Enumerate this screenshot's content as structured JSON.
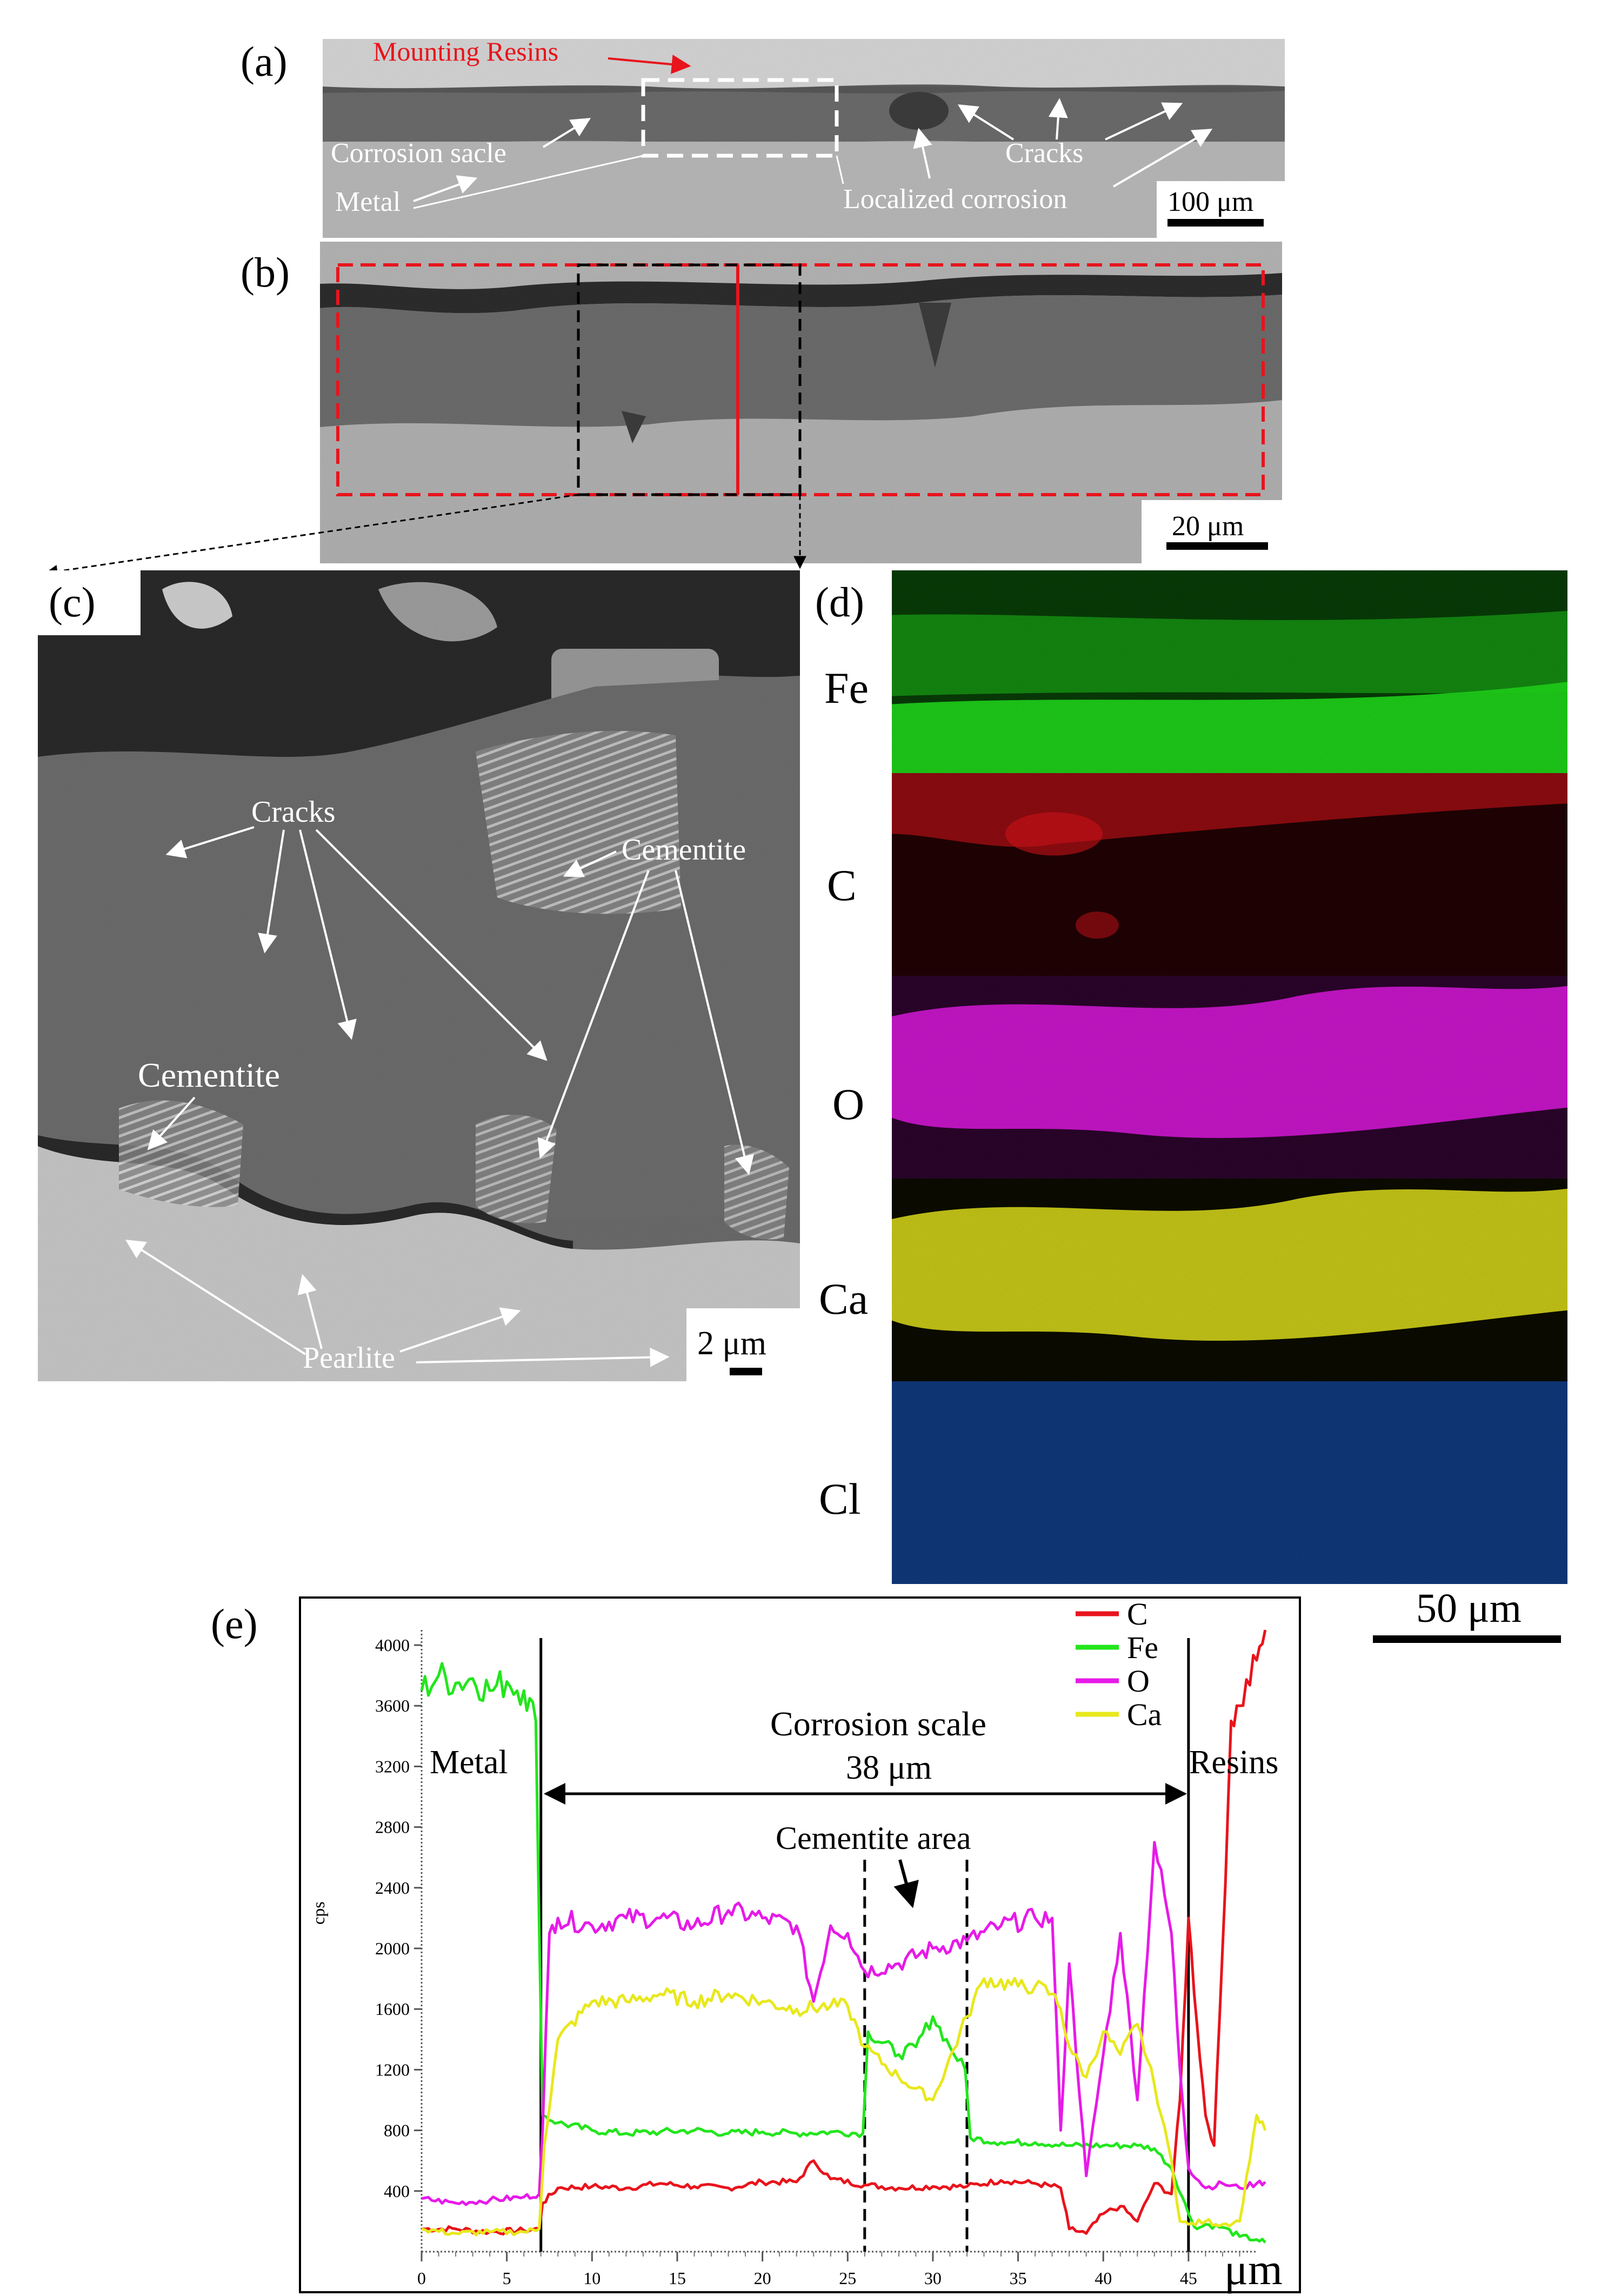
{
  "panels": {
    "a": {
      "label": "(a)",
      "annotations": [
        "Mounting Resins",
        "Corrosion sacle",
        "Metal",
        "Cracks",
        "Localized corrosion"
      ],
      "scale": "100 μm"
    },
    "b": {
      "label": "(b)",
      "scale": "20 μm"
    },
    "c": {
      "label": "(c)",
      "annotations": [
        "Cracks",
        "Cementite",
        "Cementite",
        "Pearlite"
      ],
      "scale": "2 μm"
    },
    "d": {
      "label": "(d)",
      "maps": [
        {
          "element": "Fe",
          "color": "#22e61c"
        },
        {
          "element": "C",
          "color": "#e8141c"
        },
        {
          "element": "O",
          "color": "#e61ae8"
        },
        {
          "element": "Ca",
          "color": "#e8e81c"
        },
        {
          "element": "Cl",
          "color": "#1c5cc8"
        }
      ],
      "scale": "50 μm"
    },
    "e": {
      "label": "(e)",
      "annotations": {
        "metal": "Metal",
        "scale_title": "Corrosion scale",
        "scale_len": "38 μm",
        "cementite": "Cementite area",
        "resins": "Resins"
      }
    }
  },
  "chart_data": {
    "type": "line",
    "ylabel": "cps",
    "xlabel": "μm",
    "xlim": [
      0,
      49
    ],
    "ylim": [
      0,
      4100
    ],
    "xticks": [
      0,
      5,
      10,
      15,
      20,
      25,
      30,
      35,
      40,
      45
    ],
    "yticks": [
      400,
      800,
      1200,
      1600,
      2000,
      2400,
      2800,
      3200,
      3600,
      4000
    ],
    "legend_position": "top-right",
    "markers": [
      7,
      26,
      32,
      45
    ],
    "series": [
      {
        "name": "C",
        "color": "#e8141c",
        "x": [
          0,
          2,
          4,
          6,
          6.9,
          7.1,
          8,
          10,
          12,
          14,
          16,
          18,
          20,
          22,
          23,
          24,
          26,
          28,
          30,
          32,
          34,
          36,
          37.5,
          38,
          39,
          40,
          41,
          42,
          43,
          44,
          44.5,
          45,
          45.5,
          46,
          46.5,
          47,
          47.5,
          48,
          49,
          49.5
        ],
        "y": [
          150,
          150,
          130,
          140,
          150,
          320,
          420,
          430,
          420,
          450,
          430,
          420,
          460,
          460,
          600,
          480,
          440,
          420,
          430,
          430,
          470,
          450,
          420,
          150,
          120,
          250,
          300,
          200,
          450,
          380,
          1000,
          2200,
          1500,
          900,
          700,
          2000,
          3500,
          3600,
          3900,
          4100
        ]
      },
      {
        "name": "Fe",
        "color": "#22e61c",
        "x": [
          0,
          1,
          2,
          3,
          4,
          5,
          6,
          6.7,
          7.1,
          8,
          10,
          12,
          14,
          16,
          18,
          20,
          22,
          24,
          25.9,
          26.2,
          28,
          29,
          30,
          31,
          31.9,
          32.2,
          34,
          36,
          38,
          40,
          42,
          43,
          44,
          45,
          45.5,
          46,
          47,
          48,
          49,
          49.5
        ],
        "y": [
          3700,
          3800,
          3750,
          3780,
          3700,
          3760,
          3700,
          3500,
          900,
          850,
          800,
          780,
          790,
          800,
          780,
          790,
          780,
          790,
          780,
          1450,
          1300,
          1350,
          1550,
          1350,
          1200,
          750,
          720,
          720,
          700,
          700,
          700,
          680,
          550,
          250,
          150,
          180,
          160,
          100,
          80,
          60
        ]
      },
      {
        "name": "O",
        "color": "#e61ae8",
        "x": [
          0,
          2,
          4,
          6,
          6.9,
          7.1,
          7.5,
          8,
          10,
          12,
          14,
          16,
          18,
          20,
          22,
          23,
          24,
          25,
          26,
          28,
          30,
          32,
          34,
          36,
          37,
          37.5,
          38,
          39,
          40,
          41,
          42,
          43,
          44,
          44.5,
          45,
          46,
          47,
          48,
          49,
          49.5
        ],
        "y": [
          350,
          320,
          340,
          360,
          380,
          800,
          2100,
          2200,
          2150,
          2200,
          2200,
          2150,
          2250,
          2200,
          2150,
          1650,
          2150,
          2100,
          1850,
          1900,
          2000,
          2050,
          2150,
          2200,
          2200,
          800,
          1900,
          500,
          1300,
          2100,
          1000,
          2700,
          2100,
          1200,
          550,
          420,
          450,
          420,
          450,
          460
        ]
      },
      {
        "name": "Ca",
        "color": "#e8e81c",
        "x": [
          0,
          2,
          4,
          6,
          6.9,
          7.2,
          8,
          10,
          12,
          14,
          16,
          18,
          20,
          22,
          24,
          25,
          26,
          28,
          30,
          32,
          33,
          35,
          36,
          37,
          37.5,
          38,
          39,
          40,
          41,
          42,
          43,
          44,
          44.5,
          45,
          46,
          47,
          48,
          49,
          49.5
        ],
        "y": [
          150,
          120,
          130,
          130,
          150,
          700,
          1400,
          1650,
          1650,
          1700,
          1650,
          1700,
          1650,
          1600,
          1620,
          1620,
          1350,
          1150,
          1000,
          1550,
          1800,
          1750,
          1750,
          1700,
          1600,
          1350,
          1150,
          1450,
          1300,
          1500,
          1100,
          600,
          200,
          180,
          200,
          180,
          200,
          900,
          800
        ]
      }
    ]
  }
}
